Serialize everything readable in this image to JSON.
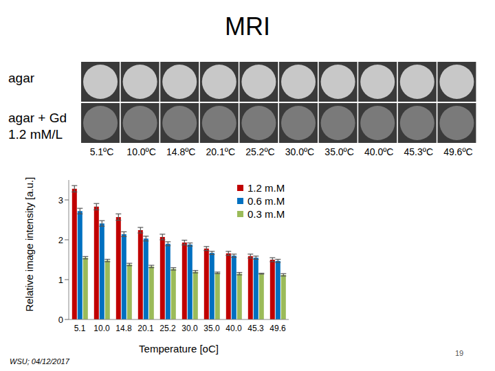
{
  "title": "MRI",
  "images": {
    "rows": [
      {
        "label": "agar"
      },
      {
        "label": "agar + Gd 1.2 mM/L"
      }
    ],
    "temperatures": [
      "5.1ºC",
      "10.0ºC",
      "14.8ºC",
      "20.1ºC",
      "25.2ºC",
      "30.0ºC",
      "35.0ºC",
      "40.0ºC",
      "45.3ºC",
      "49.6ºC"
    ]
  },
  "chart_data": {
    "type": "bar",
    "categories": [
      "5.1",
      "10.0",
      "14.8",
      "20.1",
      "25.2",
      "30.0",
      "35.0",
      "40.0",
      "45.3",
      "49.6"
    ],
    "series": [
      {
        "name": "1.2 m.M",
        "color": "#c00000",
        "values": [
          3.28,
          2.83,
          2.57,
          2.24,
          2.07,
          1.93,
          1.78,
          1.66,
          1.59,
          1.5
        ],
        "errors": [
          0.08,
          0.08,
          0.08,
          0.07,
          0.07,
          0.06,
          0.05,
          0.05,
          0.05,
          0.05
        ]
      },
      {
        "name": "0.6 m.M",
        "color": "#0070c0",
        "values": [
          2.72,
          2.41,
          2.14,
          2.03,
          1.9,
          1.88,
          1.67,
          1.6,
          1.55,
          1.47
        ],
        "errors": [
          0.07,
          0.07,
          0.06,
          0.06,
          0.05,
          0.04,
          0.04,
          0.04,
          0.04,
          0.04
        ]
      },
      {
        "name": "0.3 m.M",
        "color": "#9bbb59",
        "values": [
          1.55,
          1.48,
          1.38,
          1.33,
          1.27,
          1.2,
          1.17,
          1.15,
          1.15,
          1.12
        ],
        "errors": [
          0.03,
          0.03,
          0.03,
          0.03,
          0.03,
          0.03,
          0.02,
          0.03,
          0.01,
          0.03
        ]
      }
    ],
    "ylim": [
      0,
      3.5
    ],
    "yticks": [
      0,
      1,
      2,
      3
    ],
    "xlabel": "Temperature [oC]",
    "ylabel": "Relative image intensity [a.u.]",
    "legend": "top-right",
    "grid": false
  },
  "footer": "WSU; 04/12/2017",
  "page": "19"
}
